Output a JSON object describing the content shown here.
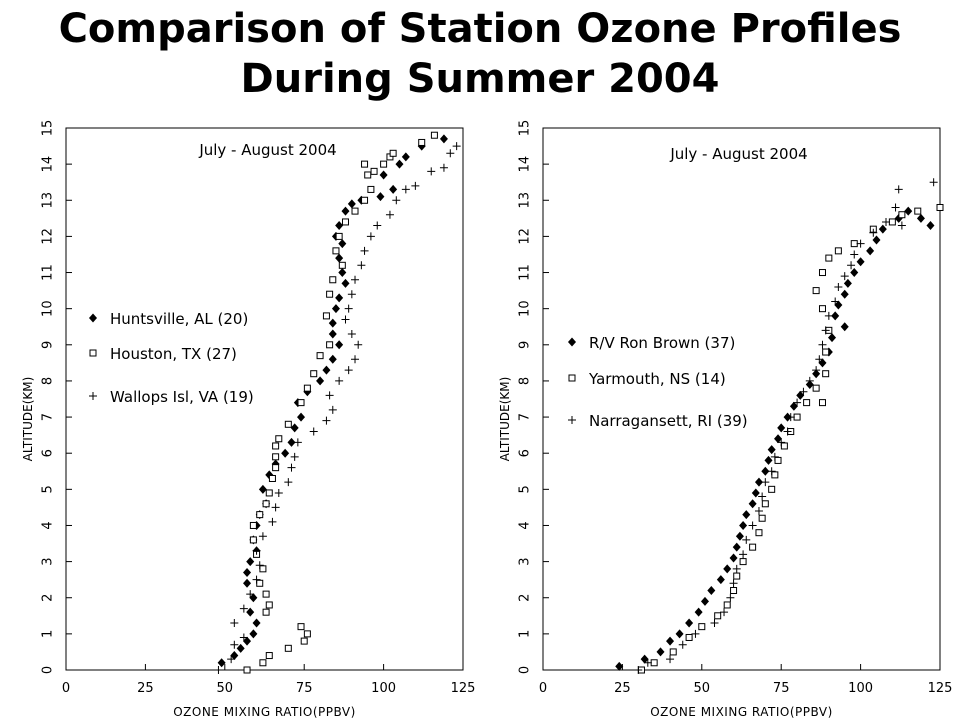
{
  "page": {
    "title_line_1": "Comparison of Station Ozone Profiles",
    "title_line_2": "During Summer 2004"
  },
  "chart_data": [
    {
      "type": "scatter",
      "title": "",
      "annotation": "July - August 2004",
      "xlabel": "OZONE MIXING RATIO(PPBV)",
      "ylabel": "ALTITUDE(KM)",
      "xlim": [
        0,
        125
      ],
      "ylim": [
        0,
        15
      ],
      "xticks": [
        "0",
        "25",
        "50",
        "75",
        "100",
        "125"
      ],
      "yticks": [
        "0",
        "1",
        "2",
        "3",
        "4",
        "5",
        "6",
        "7",
        "8",
        "9",
        "10",
        "11",
        "12",
        "13",
        "14",
        "15"
      ],
      "legend_position": "left",
      "series": [
        {
          "name": "Huntsville, AL (20)",
          "marker": "diamond",
          "points": [
            [
              49,
              0.2
            ],
            [
              53,
              0.4
            ],
            [
              55,
              0.6
            ],
            [
              57,
              0.8
            ],
            [
              59,
              1.0
            ],
            [
              60,
              1.3
            ],
            [
              58,
              1.6
            ],
            [
              59,
              2.0
            ],
            [
              57,
              2.4
            ],
            [
              57,
              2.7
            ],
            [
              58,
              3.0
            ],
            [
              60,
              3.3
            ],
            [
              59,
              3.6
            ],
            [
              60,
              4.0
            ],
            [
              61,
              4.3
            ],
            [
              63,
              4.6
            ],
            [
              62,
              5.0
            ],
            [
              64,
              5.4
            ],
            [
              66,
              5.7
            ],
            [
              69,
              6.0
            ],
            [
              71,
              6.3
            ],
            [
              72,
              6.7
            ],
            [
              74,
              7.0
            ],
            [
              73,
              7.4
            ],
            [
              76,
              7.7
            ],
            [
              80,
              8.0
            ],
            [
              82,
              8.3
            ],
            [
              84,
              8.6
            ],
            [
              86,
              9.0
            ],
            [
              84,
              9.3
            ],
            [
              84,
              9.6
            ],
            [
              85,
              10.0
            ],
            [
              86,
              10.3
            ],
            [
              88,
              10.7
            ],
            [
              87,
              11.0
            ],
            [
              86,
              11.4
            ],
            [
              87,
              11.8
            ],
            [
              85,
              12.0
            ],
            [
              86,
              12.3
            ],
            [
              88,
              12.7
            ],
            [
              90,
              12.9
            ],
            [
              93,
              13.0
            ],
            [
              99,
              13.1
            ],
            [
              103,
              13.3
            ],
            [
              100,
              13.7
            ],
            [
              105,
              14.0
            ],
            [
              107,
              14.2
            ],
            [
              112,
              14.5
            ],
            [
              119,
              14.7
            ]
          ]
        },
        {
          "name": "Houston, TX (27)",
          "marker": "square",
          "points": [
            [
              57,
              0.0
            ],
            [
              62,
              0.2
            ],
            [
              64,
              0.4
            ],
            [
              70,
              0.6
            ],
            [
              75,
              0.8
            ],
            [
              74,
              1.2
            ],
            [
              76,
              1.0
            ],
            [
              63,
              1.6
            ],
            [
              64,
              1.8
            ],
            [
              63,
              2.1
            ],
            [
              61,
              2.4
            ],
            [
              62,
              2.8
            ],
            [
              60,
              3.2
            ],
            [
              59,
              3.6
            ],
            [
              59,
              4.0
            ],
            [
              61,
              4.3
            ],
            [
              63,
              4.6
            ],
            [
              64,
              4.9
            ],
            [
              65,
              5.3
            ],
            [
              66,
              5.6
            ],
            [
              66,
              5.9
            ],
            [
              66,
              6.2
            ],
            [
              67,
              6.4
            ],
            [
              70,
              6.8
            ],
            [
              74,
              7.4
            ],
            [
              76,
              7.8
            ],
            [
              78,
              8.2
            ],
            [
              80,
              8.7
            ],
            [
              83,
              9.0
            ],
            [
              82,
              9.8
            ],
            [
              83,
              10.4
            ],
            [
              84,
              10.8
            ],
            [
              87,
              11.2
            ],
            [
              85,
              11.6
            ],
            [
              86,
              12.0
            ],
            [
              88,
              12.4
            ],
            [
              91,
              12.7
            ],
            [
              94,
              13.0
            ],
            [
              96,
              13.3
            ],
            [
              95,
              13.7
            ],
            [
              94,
              14.0
            ],
            [
              97,
              13.8
            ],
            [
              100,
              14.0
            ],
            [
              102,
              14.2
            ],
            [
              103,
              14.3
            ],
            [
              112,
              14.6
            ],
            [
              116,
              14.8
            ]
          ]
        },
        {
          "name": "Wallops Isl, VA (19)",
          "marker": "plus",
          "points": [
            [
              48,
              0.0
            ],
            [
              52,
              0.3
            ],
            [
              53,
              0.7
            ],
            [
              56,
              0.9
            ],
            [
              53,
              1.3
            ],
            [
              56,
              1.7
            ],
            [
              58,
              2.1
            ],
            [
              60,
              2.5
            ],
            [
              61,
              2.9
            ],
            [
              60,
              3.3
            ],
            [
              62,
              3.7
            ],
            [
              65,
              4.1
            ],
            [
              66,
              4.5
            ],
            [
              67,
              4.9
            ],
            [
              70,
              5.2
            ],
            [
              71,
              5.6
            ],
            [
              72,
              5.9
            ],
            [
              73,
              6.3
            ],
            [
              78,
              6.6
            ],
            [
              82,
              6.9
            ],
            [
              84,
              7.2
            ],
            [
              83,
              7.6
            ],
            [
              86,
              8.0
            ],
            [
              89,
              8.3
            ],
            [
              91,
              8.6
            ],
            [
              92,
              9.0
            ],
            [
              90,
              9.3
            ],
            [
              88,
              9.7
            ],
            [
              89,
              10.0
            ],
            [
              90,
              10.4
            ],
            [
              91,
              10.8
            ],
            [
              93,
              11.2
            ],
            [
              94,
              11.6
            ],
            [
              96,
              12.0
            ],
            [
              98,
              12.3
            ],
            [
              102,
              12.6
            ],
            [
              104,
              13.0
            ],
            [
              107,
              13.3
            ],
            [
              110,
              13.4
            ],
            [
              115,
              13.8
            ],
            [
              119,
              13.9
            ],
            [
              121,
              14.3
            ],
            [
              123,
              14.5
            ]
          ]
        }
      ]
    },
    {
      "type": "scatter",
      "title": "",
      "annotation": "July - August 2004",
      "xlabel": "OZONE MIXING RATIO(PPBV)",
      "ylabel": "ALTITUDE(KM)",
      "xlim": [
        0,
        125
      ],
      "ylim": [
        0,
        15
      ],
      "xticks": [
        "0",
        "25",
        "50",
        "75",
        "100",
        "125"
      ],
      "yticks": [
        "0",
        "1",
        "2",
        "3",
        "4",
        "5",
        "6",
        "7",
        "8",
        "9",
        "10",
        "11",
        "12",
        "13",
        "14",
        "15"
      ],
      "legend_position": "left",
      "series": [
        {
          "name": "R/V Ron Brown (37)",
          "marker": "diamond",
          "points": [
            [
              24,
              0.1
            ],
            [
              32,
              0.3
            ],
            [
              37,
              0.5
            ],
            [
              40,
              0.8
            ],
            [
              43,
              1.0
            ],
            [
              46,
              1.3
            ],
            [
              49,
              1.6
            ],
            [
              51,
              1.9
            ],
            [
              53,
              2.2
            ],
            [
              56,
              2.5
            ],
            [
              58,
              2.8
            ],
            [
              60,
              3.1
            ],
            [
              61,
              3.4
            ],
            [
              62,
              3.7
            ],
            [
              63,
              4.0
            ],
            [
              64,
              4.3
            ],
            [
              66,
              4.6
            ],
            [
              67,
              4.9
            ],
            [
              68,
              5.2
            ],
            [
              70,
              5.5
            ],
            [
              71,
              5.8
            ],
            [
              72,
              6.1
            ],
            [
              74,
              6.4
            ],
            [
              75,
              6.7
            ],
            [
              77,
              7.0
            ],
            [
              79,
              7.3
            ],
            [
              81,
              7.6
            ],
            [
              84,
              7.9
            ],
            [
              86,
              8.2
            ],
            [
              88,
              8.5
            ],
            [
              90,
              8.8
            ],
            [
              91,
              9.2
            ],
            [
              95,
              9.5
            ],
            [
              92,
              9.8
            ],
            [
              93,
              10.1
            ],
            [
              95,
              10.4
            ],
            [
              96,
              10.7
            ],
            [
              98,
              11.0
            ],
            [
              100,
              11.3
            ],
            [
              103,
              11.6
            ],
            [
              105,
              11.9
            ],
            [
              107,
              12.2
            ],
            [
              112,
              12.5
            ],
            [
              115,
              12.7
            ],
            [
              119,
              12.5
            ],
            [
              122,
              12.3
            ]
          ]
        },
        {
          "name": "Yarmouth, NS (14)",
          "marker": "square",
          "points": [
            [
              31,
              0.0
            ],
            [
              35,
              0.2
            ],
            [
              41,
              0.5
            ],
            [
              46,
              0.9
            ],
            [
              50,
              1.2
            ],
            [
              55,
              1.5
            ],
            [
              58,
              1.8
            ],
            [
              60,
              2.2
            ],
            [
              61,
              2.6
            ],
            [
              63,
              3.0
            ],
            [
              66,
              3.4
            ],
            [
              68,
              3.8
            ],
            [
              69,
              4.2
            ],
            [
              70,
              4.6
            ],
            [
              72,
              5.0
            ],
            [
              73,
              5.4
            ],
            [
              74,
              5.8
            ],
            [
              76,
              6.2
            ],
            [
              78,
              6.6
            ],
            [
              80,
              7.0
            ],
            [
              83,
              7.4
            ],
            [
              86,
              7.8
            ],
            [
              88,
              7.4
            ],
            [
              89,
              8.2
            ],
            [
              89,
              8.8
            ],
            [
              90,
              9.4
            ],
            [
              88,
              10.0
            ],
            [
              86,
              10.5
            ],
            [
              88,
              11.0
            ],
            [
              90,
              11.4
            ],
            [
              93,
              11.6
            ],
            [
              98,
              11.8
            ],
            [
              104,
              12.2
            ],
            [
              110,
              12.4
            ],
            [
              113,
              12.6
            ],
            [
              118,
              12.7
            ],
            [
              125,
              12.8
            ]
          ]
        },
        {
          "name": "Narragansett, RI (39)",
          "marker": "plus",
          "points": [
            [
              30,
              0.0
            ],
            [
              33,
              0.2
            ],
            [
              40,
              0.3
            ],
            [
              44,
              0.7
            ],
            [
              48,
              1.0
            ],
            [
              54,
              1.3
            ],
            [
              57,
              1.6
            ],
            [
              59,
              2.0
            ],
            [
              60,
              2.4
            ],
            [
              61,
              2.8
            ],
            [
              63,
              3.2
            ],
            [
              64,
              3.6
            ],
            [
              66,
              4.0
            ],
            [
              68,
              4.4
            ],
            [
              69,
              4.8
            ],
            [
              70,
              5.2
            ],
            [
              72,
              5.5
            ],
            [
              73,
              5.9
            ],
            [
              75,
              6.3
            ],
            [
              77,
              6.6
            ],
            [
              78,
              7.0
            ],
            [
              80,
              7.4
            ],
            [
              82,
              7.7
            ],
            [
              84,
              8.0
            ],
            [
              86,
              8.3
            ],
            [
              87,
              8.6
            ],
            [
              88,
              9.0
            ],
            [
              89,
              9.4
            ],
            [
              90,
              9.8
            ],
            [
              92,
              10.2
            ],
            [
              93,
              10.6
            ],
            [
              95,
              10.9
            ],
            [
              97,
              11.2
            ],
            [
              98,
              11.5
            ],
            [
              100,
              11.8
            ],
            [
              104,
              12.1
            ],
            [
              108,
              12.4
            ],
            [
              111,
              12.8
            ],
            [
              112,
              13.3
            ],
            [
              113,
              12.3
            ],
            [
              123,
              13.5
            ]
          ]
        }
      ]
    }
  ]
}
